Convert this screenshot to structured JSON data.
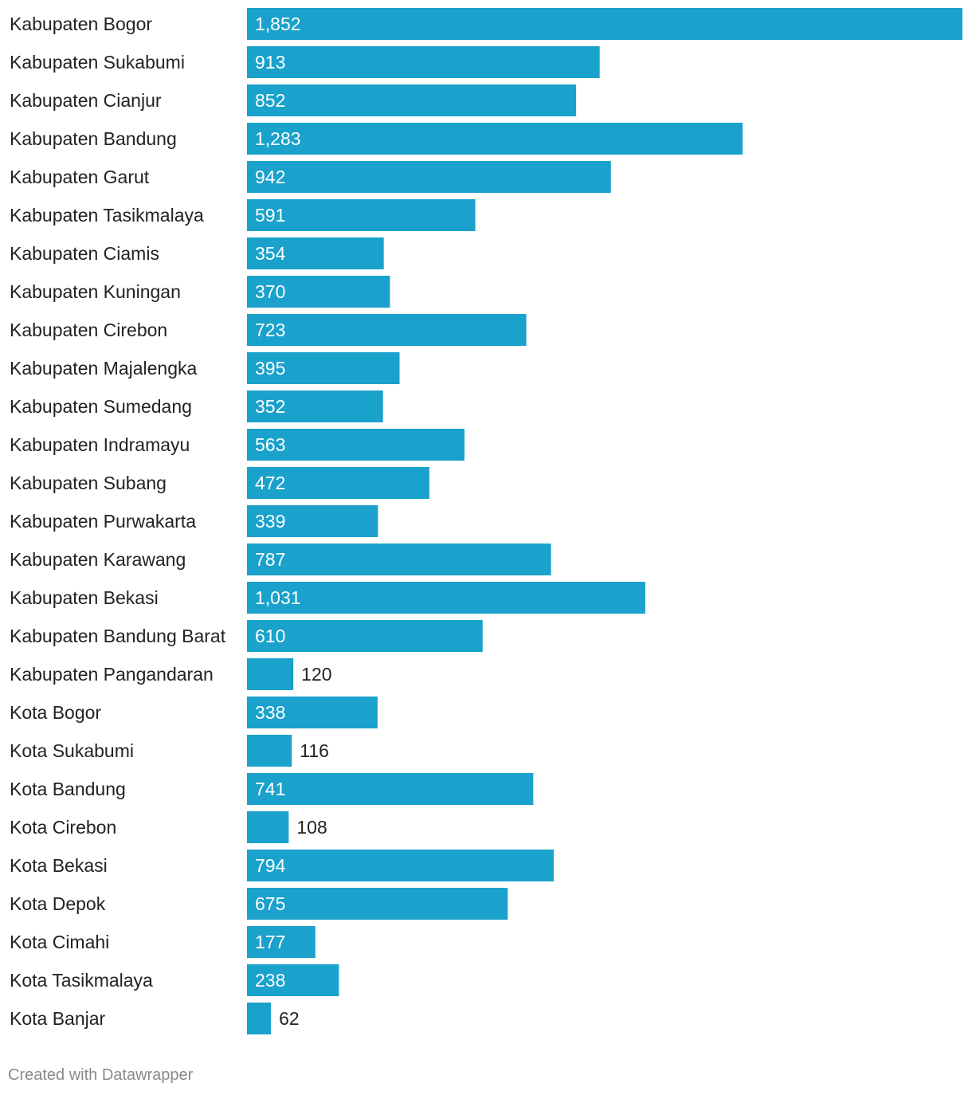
{
  "chart_data": {
    "type": "bar",
    "orientation": "horizontal",
    "title": "",
    "xlabel": "",
    "ylabel": "",
    "grid": false,
    "legend": "none",
    "bar_color": "#1aa1cc",
    "value_label_inside_color": "#ffffff",
    "value_label_outside_color": "#222222",
    "xlim": [
      0,
      1852
    ],
    "categories": [
      "Kabupaten Bogor",
      "Kabupaten Sukabumi",
      "Kabupaten Cianjur",
      "Kabupaten Bandung",
      "Kabupaten Garut",
      "Kabupaten Tasikmalaya",
      "Kabupaten Ciamis",
      "Kabupaten Kuningan",
      "Kabupaten Cirebon",
      "Kabupaten Majalengka",
      "Kabupaten Sumedang",
      "Kabupaten Indramayu",
      "Kabupaten Subang",
      "Kabupaten Purwakarta",
      "Kabupaten Karawang",
      "Kabupaten Bekasi",
      "Kabupaten Bandung Barat",
      "Kabupaten Pangandaran",
      "Kota Bogor",
      "Kota Sukabumi",
      "Kota Bandung",
      "Kota Cirebon",
      "Kota Bekasi",
      "Kota Depok",
      "Kota Cimahi",
      "Kota Tasikmalaya",
      "Kota Banjar"
    ],
    "values": [
      1852,
      913,
      852,
      1283,
      942,
      591,
      354,
      370,
      723,
      395,
      352,
      563,
      472,
      339,
      787,
      1031,
      610,
      120,
      338,
      116,
      741,
      108,
      794,
      675,
      177,
      238,
      62
    ],
    "value_labels": [
      "1,852",
      "913",
      "852",
      "1,283",
      "942",
      "591",
      "354",
      "370",
      "723",
      "395",
      "352",
      "563",
      "472",
      "339",
      "787",
      "1,031",
      "610",
      "120",
      "338",
      "116",
      "741",
      "108",
      "794",
      "675",
      "177",
      "238",
      "62"
    ]
  },
  "footer": {
    "credit": "Created with Datawrapper"
  }
}
